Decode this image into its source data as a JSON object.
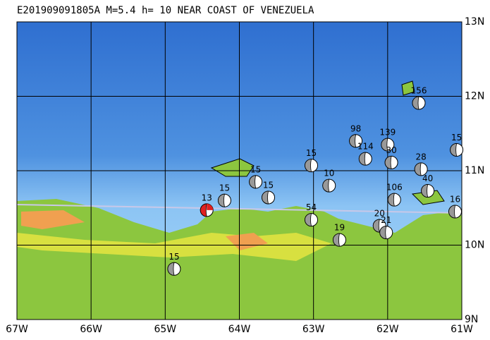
{
  "title": "E201909091805A M=5.4 h= 10 NEAR COAST OF VENEZUELA",
  "map": {
    "xlim": [
      -67,
      -61
    ],
    "ylim": [
      9,
      13
    ],
    "xticks": [
      {
        "value": -67,
        "label": "67W"
      },
      {
        "value": -66,
        "label": "66W"
      },
      {
        "value": -65,
        "label": "65W"
      },
      {
        "value": -64,
        "label": "64W"
      },
      {
        "value": -63,
        "label": "63W"
      },
      {
        "value": -62,
        "label": "62W"
      },
      {
        "value": -61,
        "label": "61W"
      }
    ],
    "yticks": [
      {
        "value": 9,
        "label": "9N"
      },
      {
        "value": 10,
        "label": "10N"
      },
      {
        "value": 11,
        "label": "11N"
      },
      {
        "value": 12,
        "label": "12N"
      },
      {
        "value": 13,
        "label": "13N"
      }
    ],
    "events": [
      {
        "lon": -64.44,
        "lat": 10.47,
        "depth": 13,
        "main": true
      },
      {
        "lon": -64.2,
        "lat": 10.6,
        "depth": 15
      },
      {
        "lon": -64.88,
        "lat": 9.68,
        "depth": 15
      },
      {
        "lon": -61.58,
        "lat": 11.91,
        "depth": 156
      },
      {
        "lon": -62.43,
        "lat": 11.4,
        "depth": 98
      },
      {
        "lon": -62.0,
        "lat": 11.35,
        "depth": 139
      },
      {
        "lon": -61.07,
        "lat": 11.28,
        "depth": 15
      },
      {
        "lon": -61.55,
        "lat": 11.02,
        "depth": 28
      },
      {
        "lon": -61.46,
        "lat": 10.73,
        "depth": 40
      },
      {
        "lon": -61.91,
        "lat": 10.61,
        "depth": 106
      },
      {
        "lon": -61.09,
        "lat": 10.45,
        "depth": 16
      },
      {
        "lon": -63.03,
        "lat": 11.07,
        "depth": 15
      },
      {
        "lon": -63.03,
        "lat": 10.34,
        "depth": 54
      },
      {
        "lon": -62.65,
        "lat": 10.07,
        "depth": 19
      },
      {
        "lon": -62.11,
        "lat": 10.26,
        "depth": 20
      },
      {
        "lon": -62.02,
        "lat": 10.17,
        "depth": 21
      },
      {
        "lon": -63.78,
        "lat": 10.85,
        "depth": 15
      },
      {
        "lon": -63.61,
        "lat": 10.64,
        "depth": 15
      },
      {
        "lon": -62.79,
        "lat": 10.8,
        "depth": 10
      },
      {
        "lon": -62.3,
        "lat": 11.16,
        "depth": 114
      },
      {
        "lon": -61.95,
        "lat": 11.11,
        "depth": 30
      }
    ]
  }
}
